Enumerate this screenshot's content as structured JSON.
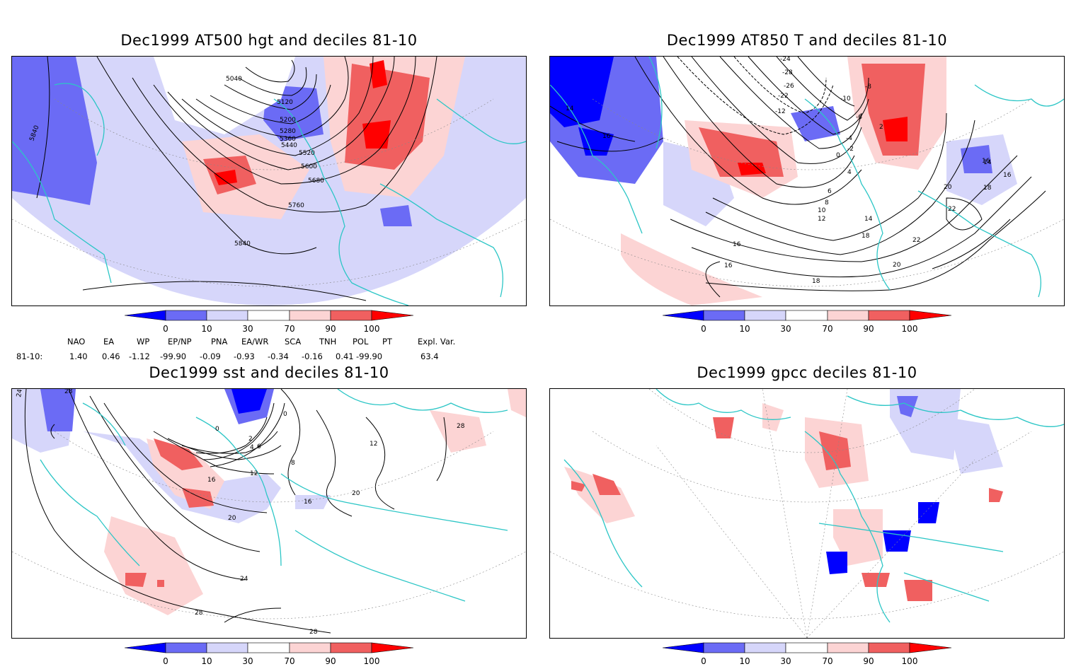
{
  "panels": [
    {
      "title": "Dec1999 AT500 hgt and deciles 81-10",
      "contour_labels": [
        "5040",
        "5120",
        "5200",
        "5280",
        "5360",
        "5440",
        "5520",
        "5600",
        "5680",
        "5760",
        "5840",
        "5840"
      ]
    },
    {
      "title": "Dec1999 AT850 T and deciles 81-10",
      "contour_labels": [
        "-24",
        "-28",
        "-26",
        "-22",
        "-12",
        "-10",
        "-8",
        "-6",
        "-4",
        "-2",
        "0",
        "2",
        "4",
        "6",
        "8",
        "10",
        "12",
        "14",
        "14",
        "16",
        "16",
        "16",
        "18",
        "18",
        "20",
        "20",
        "22",
        "22",
        "16",
        "14",
        "16",
        "18"
      ]
    },
    {
      "title": "Dec1999 sst and deciles 81-10",
      "contour_labels": [
        "24",
        "28",
        "0",
        "0",
        "2",
        "4",
        "6",
        "8",
        "12",
        "12",
        "16",
        "16",
        "20",
        "20",
        "24",
        "28",
        "28",
        "28"
      ]
    },
    {
      "title": "Dec1999 gpcc deciles 81-10",
      "contour_labels": []
    }
  ],
  "colorbar": {
    "labels": [
      "0",
      "10",
      "30",
      "70",
      "90",
      "100"
    ],
    "colors": [
      "#0000ff",
      "#6b6bf5",
      "#d6d6fa",
      "#ffffff",
      "#fcd4d4",
      "#f06060",
      "#ff0000"
    ]
  },
  "indices": {
    "headers": [
      "NAO",
      "EA",
      "WP",
      "EP/NP",
      "PNA",
      "EA/WR",
      "SCA",
      "TNH",
      "POL",
      "PT",
      "Expl. Var."
    ],
    "row_label": "81-10:",
    "values": [
      "1.40",
      "0.46",
      "-1.12",
      "-99.90",
      "-0.09",
      "-0.93",
      "-0.34",
      "-0.16",
      "0.41",
      "-99.90",
      "63.4"
    ]
  }
}
